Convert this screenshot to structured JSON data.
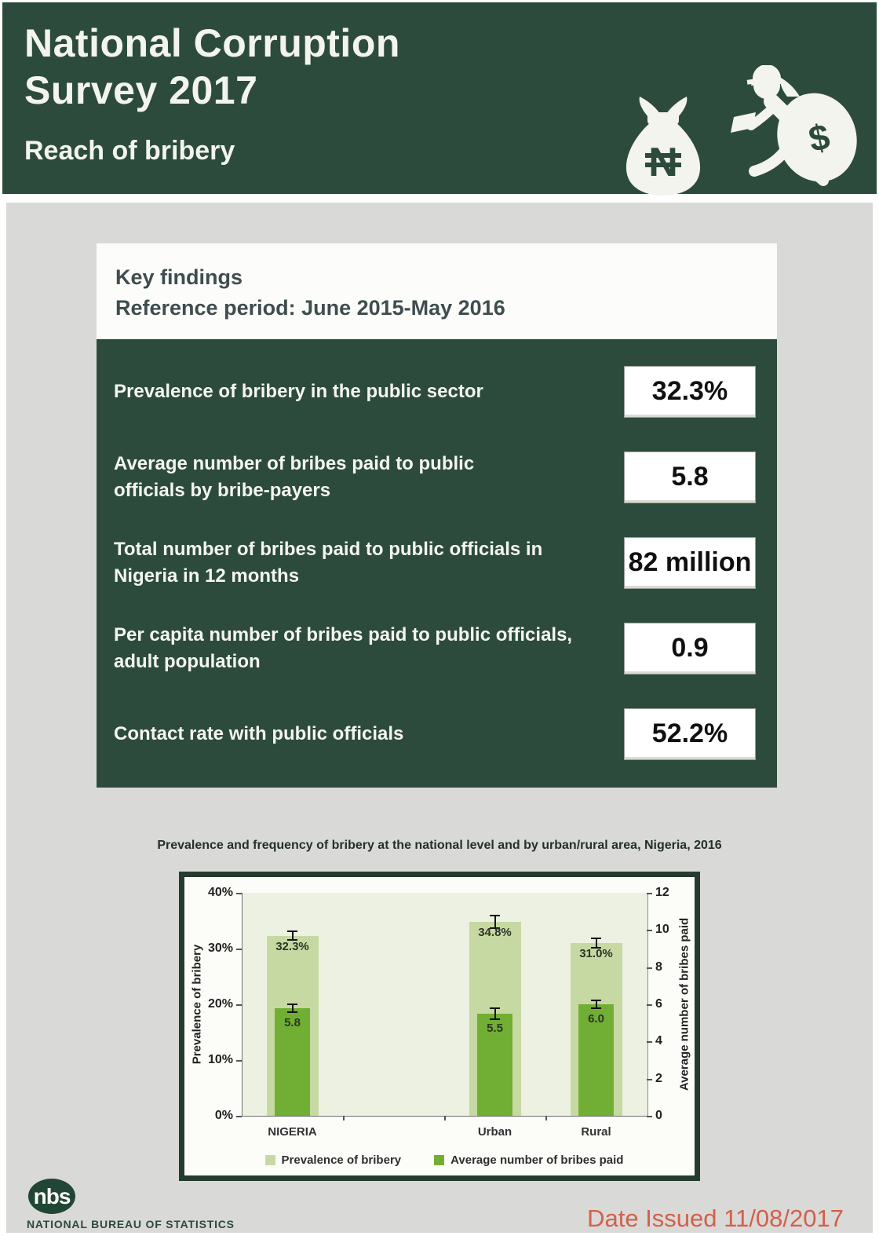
{
  "header": {
    "title_lines": [
      "National Corruption",
      "Survey 2017"
    ],
    "subtitle": "Reach of bribery",
    "icons": {
      "bag_symbol": "N",
      "bag_symbol_name": "naira",
      "sack_symbol": "$"
    }
  },
  "key_findings": {
    "heading": "Key findings",
    "reference_period": "Reference period: June 2015-May 2016",
    "rows": [
      {
        "label": "Prevalence of bribery in the public sector",
        "value": "32.3%"
      },
      {
        "label": "Average number of bribes paid to public\nofficials by bribe-payers",
        "value": "5.8"
      },
      {
        "label": "Total number of bribes paid to public officials in\nNigeria in 12 months",
        "value": "82 million"
      },
      {
        "label": "Per capita number of bribes paid to public officials,\nadult population",
        "value": "0.9"
      },
      {
        "label": "Contact rate with public officials",
        "value": "52.2%"
      }
    ]
  },
  "chart_data": {
    "type": "bar",
    "title": "Prevalence and frequency of bribery at the national level and by urban/rural area, Nigeria, 2016",
    "categories": [
      "NIGERIA",
      "Urban",
      "Rural"
    ],
    "series": [
      {
        "name": "Prevalence of bribery",
        "axis": "left",
        "values": [
          32.3,
          34.8,
          31.0
        ],
        "labels": [
          "32.3%",
          "34.8%",
          "31.0%"
        ],
        "errors": [
          0.9,
          1.3,
          1.0
        ],
        "color": "#c7d9a2"
      },
      {
        "name": "Average number of bribes paid",
        "axis": "right",
        "values": [
          5.8,
          5.5,
          6.0
        ],
        "labels": [
          "5.8",
          "5.5",
          "6.0"
        ],
        "errors": [
          0.25,
          0.35,
          0.25
        ],
        "color": "#71ae34"
      }
    ],
    "left_axis": {
      "label": "Prevalence of bribery",
      "ticks": [
        "0%",
        "10%",
        "20%",
        "30%",
        "40%"
      ],
      "min": 0,
      "max": 40
    },
    "right_axis": {
      "label": "Average number of bribes paid",
      "ticks": [
        "0",
        "2",
        "4",
        "6",
        "8",
        "10",
        "12"
      ],
      "min": 0,
      "max": 12
    },
    "legend": [
      "Prevalence of bribery",
      "Average number of bribes paid"
    ],
    "legend_position": "bottom",
    "grid": false,
    "error_bars": true,
    "layout": {
      "slot_count": 4,
      "category_slots": [
        0,
        2,
        3
      ]
    }
  },
  "footer": {
    "logo_text": "nbs",
    "org_name": "NATIONAL BUREAU OF STATISTICS",
    "date_issued": "Date Issued 11/08/2017"
  },
  "colors": {
    "header_green": "#2d4b3c",
    "page_gray": "#d9d9d7",
    "chart_frame": "#263b2f",
    "plot_bg": "#ecf1e2",
    "bar_light": "#c7d9a2",
    "bar_dark": "#71ae34",
    "date_red": "#d2604b"
  }
}
